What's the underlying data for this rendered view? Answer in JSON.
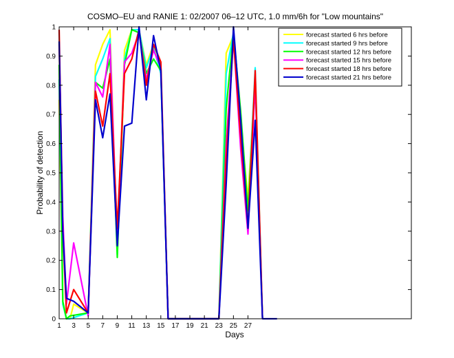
{
  "chart_data": {
    "type": "line",
    "title": "COSMO–EU and RANIE 1: 02/2007 06–12 UTC, 1.0 mm/6h for \"Low mountains\"",
    "xlabel": "Days",
    "ylabel": "Probability of detection",
    "xlim": [
      1,
      49.5
    ],
    "ylim": [
      0,
      1
    ],
    "x_ticks": [
      1,
      3,
      5,
      7,
      9,
      11,
      13,
      15,
      17,
      19,
      21,
      23,
      25,
      27
    ],
    "x_tick_labels": [
      "1",
      "3",
      "5",
      "7",
      "9",
      "11",
      "13",
      "15",
      "17",
      "19",
      "21",
      "23",
      "25",
      "27"
    ],
    "y_ticks": [
      0,
      0.1,
      0.2,
      0.3,
      0.4,
      0.5,
      0.6,
      0.7,
      0.8,
      0.9,
      1
    ],
    "y_tick_labels": [
      "0",
      "0.1",
      "0.2",
      "0.3",
      "0.4",
      "0.5",
      "0.6",
      "0.7",
      "0.8",
      "0.9",
      "1"
    ],
    "grid": false,
    "legend_position": "top-right",
    "series": [
      {
        "name": "forecast started 6 hrs before",
        "color": "#ffff00",
        "points": [
          [
            1,
            0.75
          ],
          [
            1.5,
            0.05
          ],
          [
            2,
            0
          ],
          [
            2.5,
            0
          ],
          [
            3,
            0.05
          ],
          [
            5,
            0.02
          ],
          [
            6,
            0.87
          ],
          [
            7,
            0.94
          ],
          [
            8,
            0.99
          ],
          [
            9,
            0.24
          ],
          [
            10,
            0.92
          ],
          [
            11,
            0.99
          ],
          [
            12,
            0.99
          ],
          [
            13,
            0.87
          ],
          [
            14,
            0.94
          ],
          [
            15,
            0.87
          ],
          [
            16,
            0
          ],
          [
            23,
            0
          ],
          [
            24,
            0.91
          ],
          [
            25,
            0.97
          ],
          [
            26,
            0.67
          ],
          [
            27,
            0.41
          ],
          [
            28,
            0.84
          ],
          [
            29,
            0
          ]
        ]
      },
      {
        "name": "forecast started 9 hrs before",
        "color": "#00ffff",
        "points": [
          [
            1,
            0.82
          ],
          [
            1.5,
            0.05
          ],
          [
            2,
            0
          ],
          [
            2.5,
            0
          ],
          [
            5,
            0.02
          ],
          [
            6,
            0.83
          ],
          [
            7,
            0.89
          ],
          [
            8,
            0.96
          ],
          [
            9,
            0.22
          ],
          [
            10,
            0.89
          ],
          [
            11,
            0.99
          ],
          [
            12,
            0.99
          ],
          [
            13,
            0.86
          ],
          [
            14,
            0.93
          ],
          [
            15,
            0.84
          ],
          [
            16,
            0
          ],
          [
            23,
            0
          ],
          [
            24,
            0.84
          ],
          [
            25,
            0.98
          ],
          [
            26,
            0.7
          ],
          [
            27,
            0.36
          ],
          [
            28,
            0.86
          ],
          [
            29,
            0
          ]
        ]
      },
      {
        "name": "forecast started 12 hrs before",
        "color": "#00ff00",
        "points": [
          [
            1,
            0.87
          ],
          [
            1.5,
            0.06
          ],
          [
            2,
            0
          ],
          [
            2.5,
            0.01
          ],
          [
            5,
            0.02
          ],
          [
            6,
            0.81
          ],
          [
            7,
            0.79
          ],
          [
            8,
            0.89
          ],
          [
            9,
            0.21
          ],
          [
            10,
            0.87
          ],
          [
            11,
            0.99
          ],
          [
            12,
            0.98
          ],
          [
            13,
            0.84
          ],
          [
            14,
            0.89
          ],
          [
            15,
            0.85
          ],
          [
            16,
            0
          ],
          [
            23,
            0
          ],
          [
            24,
            0.72
          ],
          [
            25,
            0.98
          ],
          [
            26,
            0.71
          ],
          [
            27,
            0.37
          ],
          [
            28,
            0.8
          ],
          [
            29,
            0
          ]
        ]
      },
      {
        "name": "forecast started 15 hrs before",
        "color": "#ff00ff",
        "points": [
          [
            1,
            0.94
          ],
          [
            1.5,
            0.35
          ],
          [
            2,
            0.05
          ],
          [
            3,
            0.26
          ],
          [
            5,
            0.01
          ],
          [
            6,
            0.81
          ],
          [
            7,
            0.76
          ],
          [
            8,
            0.94
          ],
          [
            9,
            0.27
          ],
          [
            10,
            0.88
          ],
          [
            11,
            0.91
          ],
          [
            12,
            0.98
          ],
          [
            13,
            0.82
          ],
          [
            14,
            0.92
          ],
          [
            15,
            0.86
          ],
          [
            16,
            0
          ],
          [
            23,
            0
          ],
          [
            24,
            0.6
          ],
          [
            25,
            0.96
          ],
          [
            26,
            0.58
          ],
          [
            27,
            0.29
          ],
          [
            28,
            0.81
          ],
          [
            29,
            0
          ]
        ]
      },
      {
        "name": "forecast started 18 hrs before",
        "color": "#ff0000",
        "points": [
          [
            1,
            0.99
          ],
          [
            1.5,
            0.3
          ],
          [
            2,
            0.02
          ],
          [
            3,
            0.1
          ],
          [
            5,
            0.02
          ],
          [
            6,
            0.78
          ],
          [
            7,
            0.66
          ],
          [
            8,
            0.84
          ],
          [
            9,
            0.31
          ],
          [
            10,
            0.84
          ],
          [
            11,
            0.89
          ],
          [
            12,
            0.99
          ],
          [
            13,
            0.8
          ],
          [
            14,
            0.94
          ],
          [
            15,
            0.88
          ],
          [
            16,
            0
          ],
          [
            23,
            0
          ],
          [
            24,
            0.55
          ],
          [
            25,
            0.96
          ],
          [
            26,
            0.62
          ],
          [
            27,
            0.31
          ],
          [
            28,
            0.85
          ],
          [
            29,
            0
          ]
        ]
      },
      {
        "name": "forecast started 21 hrs before",
        "color": "#0000cc",
        "points": [
          [
            1,
            0.95
          ],
          [
            1.5,
            0.3
          ],
          [
            2,
            0.07
          ],
          [
            3,
            0.06
          ],
          [
            5,
            0.02
          ],
          [
            6,
            0.75
          ],
          [
            7,
            0.62
          ],
          [
            8,
            0.77
          ],
          [
            9,
            0.25
          ],
          [
            10,
            0.66
          ],
          [
            11,
            0.67
          ],
          [
            12,
            1.0
          ],
          [
            13,
            0.75
          ],
          [
            14,
            0.97
          ],
          [
            15,
            0.85
          ],
          [
            16,
            0
          ],
          [
            23,
            0
          ],
          [
            24,
            0.46
          ],
          [
            25,
            1.0
          ],
          [
            26,
            0.68
          ],
          [
            27,
            0.31
          ],
          [
            28,
            0.68
          ],
          [
            29,
            0
          ],
          [
            30,
            0
          ],
          [
            31,
            0
          ]
        ]
      }
    ]
  }
}
